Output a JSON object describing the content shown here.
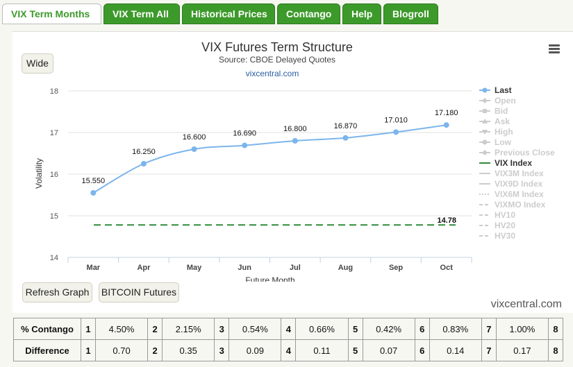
{
  "tabs": [
    "VIX Term Months",
    "VIX Term All",
    "Historical Prices",
    "Contango",
    "Help",
    "Blogroll"
  ],
  "buttons": {
    "wide": "Wide",
    "refresh": "Refresh Graph",
    "bitcoin": "BITCOIN Futures"
  },
  "chart_data": {
    "type": "line",
    "title": "VIX Futures Term Structure",
    "subtitle": "Source: CBOE Delayed Quotes",
    "credit": "vixcentral.com",
    "xlabel": "Future Month",
    "ylabel": "Volatility",
    "categories": [
      "Mar",
      "Apr",
      "May",
      "Jun",
      "Jul",
      "Aug",
      "Sep",
      "Oct"
    ],
    "ylim": [
      14,
      18
    ],
    "yticks": [
      "14",
      "15",
      "16",
      "17",
      "18"
    ],
    "grid": true,
    "legend_position": "right",
    "series": [
      {
        "name": "Last",
        "values": [
          15.55,
          16.25,
          16.6,
          16.69,
          16.8,
          16.87,
          17.01,
          17.18
        ],
        "labels": [
          "15.550",
          "16.250",
          "16.600",
          "16.690",
          "16.800",
          "16.870",
          "17.010",
          "17.180"
        ],
        "color": "#7cb5ec"
      },
      {
        "name": "VIX Index",
        "value": 14.78,
        "label": "14.78",
        "color": "#2e8b3a"
      }
    ],
    "legend": [
      {
        "name": "Last",
        "active": true,
        "symbol": "dot",
        "color": "#7cb5ec"
      },
      {
        "name": "Open",
        "active": false,
        "symbol": "diamond"
      },
      {
        "name": "Bid",
        "active": false,
        "symbol": "square"
      },
      {
        "name": "Ask",
        "active": false,
        "symbol": "triangle"
      },
      {
        "name": "High",
        "active": false,
        "symbol": "triangle-down"
      },
      {
        "name": "Low",
        "active": false,
        "symbol": "dot"
      },
      {
        "name": "Previous Close",
        "active": false,
        "symbol": "diamond"
      },
      {
        "name": "VIX Index",
        "active": true,
        "symbol": "line",
        "color": "#2e8b3a"
      },
      {
        "name": "VIX3M Index",
        "active": false,
        "symbol": "line"
      },
      {
        "name": "VIX9D Index",
        "active": false,
        "symbol": "line"
      },
      {
        "name": "VIX6M Index",
        "active": false,
        "symbol": "dotted"
      },
      {
        "name": "VIXMO Index",
        "active": false,
        "symbol": "dashed"
      },
      {
        "name": "HV10",
        "active": false,
        "symbol": "dashed"
      },
      {
        "name": "HV20",
        "active": false,
        "symbol": "dashed"
      },
      {
        "name": "HV30",
        "active": false,
        "symbol": "dashed"
      }
    ]
  },
  "stats_table": {
    "rows": [
      {
        "label": "% Contango",
        "cells": [
          "1",
          "4.50%",
          "2",
          "2.15%",
          "3",
          "0.54%",
          "4",
          "0.66%",
          "5",
          "0.42%",
          "6",
          "0.83%",
          "7",
          "1.00%",
          "8"
        ]
      },
      {
        "label": "Difference",
        "cells": [
          "1",
          "0.70",
          "2",
          "0.35",
          "3",
          "0.09",
          "4",
          "0.11",
          "5",
          "0.07",
          "6",
          "0.14",
          "7",
          "0.17",
          "8"
        ]
      }
    ]
  },
  "footer_brand": "vixcentral.com"
}
